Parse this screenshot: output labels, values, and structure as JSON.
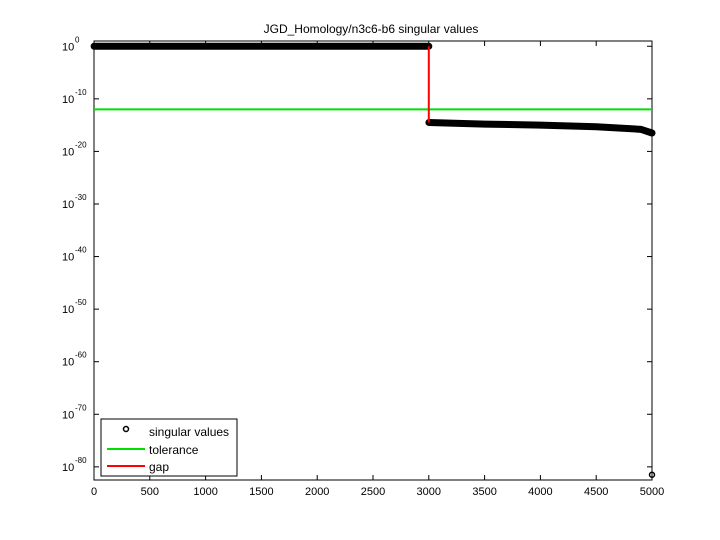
{
  "chart_data": {
    "type": "line",
    "title": "JGD_Homology/n3c6-b6 singular values",
    "xlabel": "",
    "ylabel": "",
    "xlim": [
      0,
      5000
    ],
    "ylim_log10": [
      -82.5,
      1
    ],
    "yscale": "log",
    "x_ticks": [
      "0",
      "500",
      "1000",
      "1500",
      "2000",
      "2500",
      "3000",
      "3500",
      "4000",
      "4500",
      "5000"
    ],
    "y_ticks": [
      {
        "base": "10",
        "exp": "0"
      },
      {
        "base": "10",
        "exp": "-10"
      },
      {
        "base": "10",
        "exp": "-20"
      },
      {
        "base": "10",
        "exp": "-30"
      },
      {
        "base": "10",
        "exp": "-40"
      },
      {
        "base": "10",
        "exp": "-50"
      },
      {
        "base": "10",
        "exp": "-60"
      },
      {
        "base": "10",
        "exp": "-70"
      },
      {
        "base": "10",
        "exp": "-80"
      }
    ],
    "series": [
      {
        "name": "singular values",
        "style": "markers",
        "color": "#000000",
        "points_log10": [
          [
            1,
            0.0
          ],
          [
            3000,
            0.0
          ],
          [
            3001,
            -14.5
          ],
          [
            3500,
            -14.8
          ],
          [
            4000,
            -15.0
          ],
          [
            4500,
            -15.3
          ],
          [
            4900,
            -15.8
          ],
          [
            5000,
            -16.5
          ],
          [
            5000,
            -81.5
          ]
        ]
      },
      {
        "name": "tolerance",
        "style": "line",
        "color": "#00e000",
        "value_log10": -12
      },
      {
        "name": "gap",
        "style": "line",
        "color": "#ff0000",
        "x": 3000,
        "from_log10": 0,
        "to_log10": -14.5
      }
    ],
    "legend_position": "lower left",
    "grid": false
  },
  "legend": {
    "items": [
      {
        "label": "singular values"
      },
      {
        "label": "tolerance"
      },
      {
        "label": "gap"
      }
    ]
  }
}
